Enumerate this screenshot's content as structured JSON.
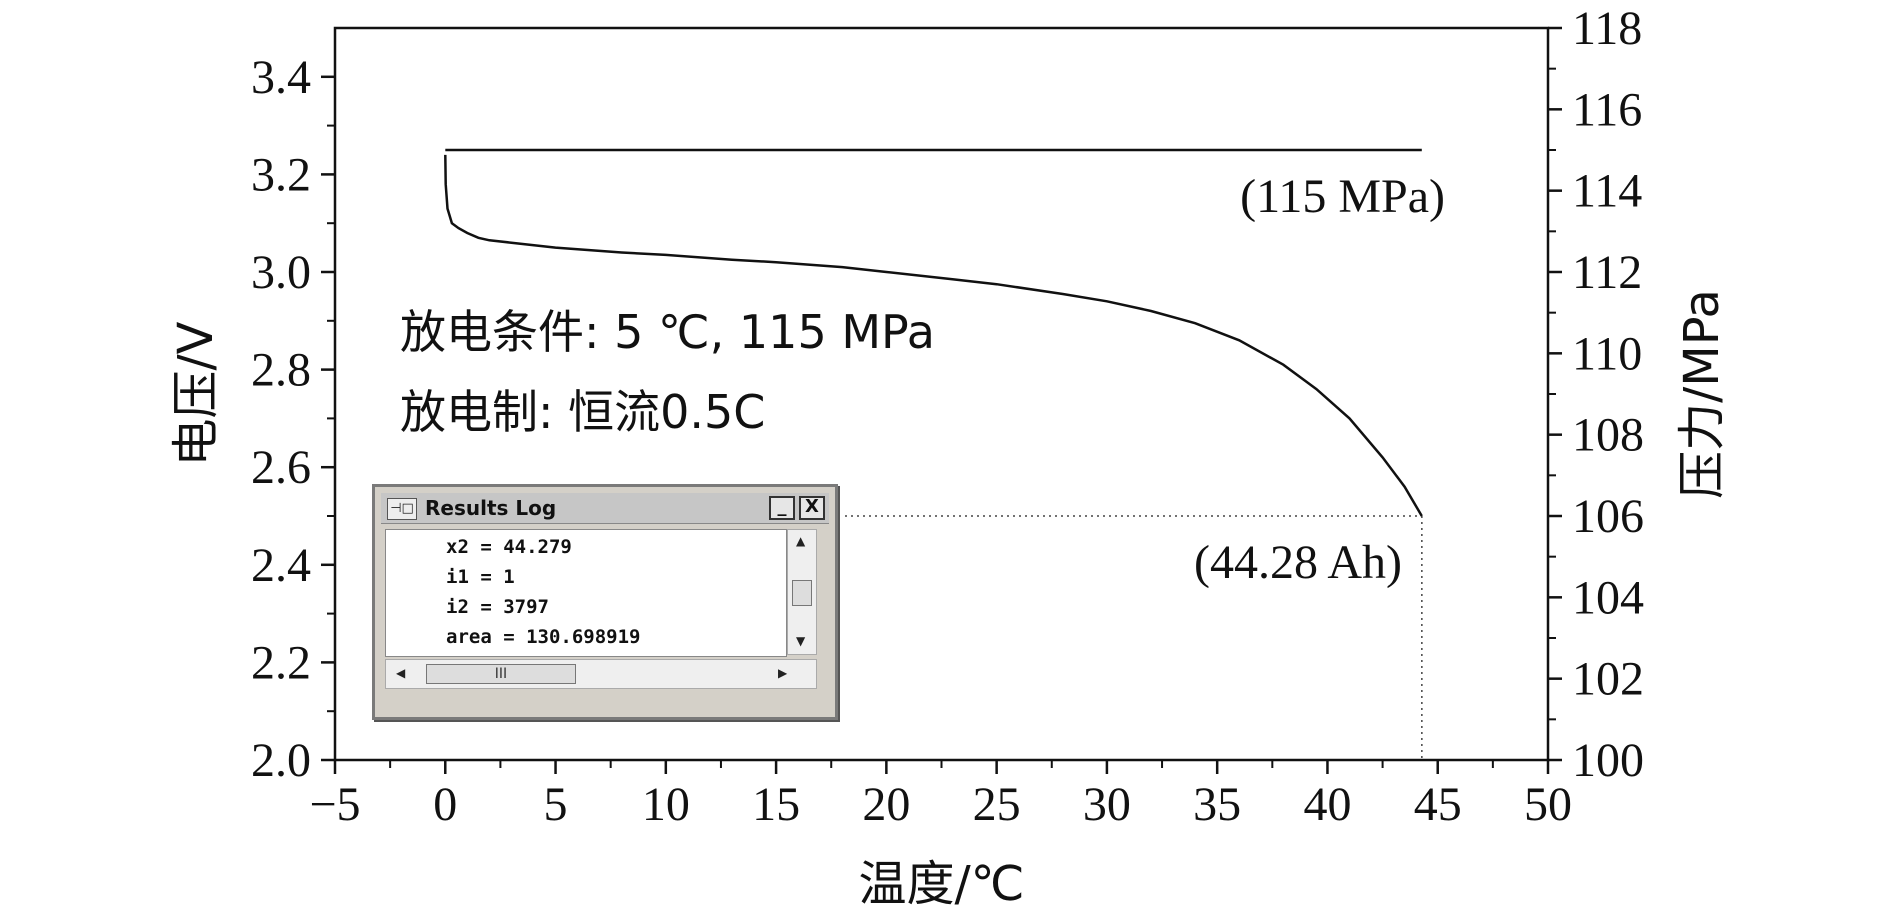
{
  "chart_data": {
    "type": "line",
    "xlabel": "温度/℃",
    "ylabel_left": "电压/V",
    "ylabel_right": "压力/MPa",
    "xlim": [
      -5,
      50
    ],
    "ylim_left": [
      2.0,
      3.5
    ],
    "ylim_right": [
      100,
      118
    ],
    "x_ticks": [
      "−5",
      "0",
      "5",
      "10",
      "15",
      "20",
      "25",
      "30",
      "35",
      "40",
      "45",
      "50"
    ],
    "y_left_ticks": [
      "2.0",
      "2.2",
      "2.4",
      "2.6",
      "2.8",
      "3.0",
      "3.2",
      "3.4"
    ],
    "y_right_ticks": [
      "100",
      "102",
      "104",
      "106",
      "108",
      "110",
      "112",
      "114",
      "116",
      "118"
    ],
    "series": [
      {
        "axis": "left",
        "x": [
          0,
          0.02,
          0.1,
          0.3,
          0.6,
          1,
          1.5,
          2,
          3,
          5,
          8,
          10,
          13,
          15,
          18,
          20,
          23,
          25,
          28,
          30,
          32,
          34,
          36,
          38,
          39.5,
          41,
          42.5,
          43.5,
          44.28
        ],
        "y": [
          3.24,
          3.18,
          3.13,
          3.1,
          3.09,
          3.08,
          3.07,
          3.065,
          3.06,
          3.05,
          3.04,
          3.035,
          3.025,
          3.02,
          3.01,
          3.0,
          2.985,
          2.975,
          2.955,
          2.94,
          2.92,
          2.895,
          2.86,
          2.81,
          2.76,
          2.7,
          2.62,
          2.56,
          2.5
        ]
      },
      {
        "axis": "right",
        "x": [
          0,
          44.28
        ],
        "y": [
          115,
          115
        ]
      }
    ],
    "reference_lines": {
      "voltage": 2.5,
      "x": 44.28
    },
    "annotations": {
      "pressure": "(115 MPa)",
      "capacity": "(44.28 Ah)",
      "condition1": "放电条件: 5 ℃, 115 MPa",
      "condition2": "放电制: 恒流0.5C"
    }
  },
  "results_log": {
    "title": "Results Log",
    "minimize": "_",
    "close": "X",
    "lines": [
      "x2 = 44.279",
      "i1 = 1",
      "i2 = 3797",
      "area = 130.698919"
    ],
    "hscroll_grip": "III"
  }
}
